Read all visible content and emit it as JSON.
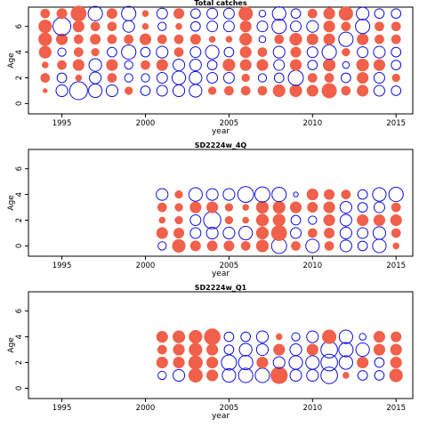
{
  "chart_data": [
    {
      "type": "scatter",
      "title": "Total catches",
      "xlabel": "year",
      "ylabel": "Age",
      "xlim": [
        1993,
        2016
      ],
      "ylim": [
        -0.8,
        7.5
      ],
      "xticks": [
        1995,
        2000,
        2005,
        2010,
        2015
      ],
      "yticks": [
        0,
        2,
        4,
        6
      ],
      "years": [
        1994,
        1995,
        1996,
        1997,
        1998,
        1999,
        2000,
        2001,
        2002,
        2003,
        2004,
        2005,
        2006,
        2007,
        2008,
        2009,
        2010,
        2011,
        2012,
        2013,
        2014,
        2015
      ],
      "ages": [
        1,
        2,
        3,
        4,
        5,
        6,
        7
      ],
      "residuals": [
        [
          0.05,
          0.2,
          0.1,
          0.35,
          0.4,
          0.4,
          0.2
        ],
        [
          -0.3,
          -0.2,
          0.2,
          -0.15,
          0.3,
          -0.7,
          0.25
        ],
        [
          -0.7,
          0.1,
          0.3,
          0.2,
          0.2,
          0.3,
          0.55
        ],
        [
          -0.4,
          -0.3,
          -0.35,
          0.15,
          0.25,
          0.2,
          -0.45
        ],
        [
          -0.3,
          0.2,
          0.3,
          -0.2,
          0.2,
          0.2,
          0.25
        ],
        [
          0.15,
          -0.15,
          -0.15,
          -0.45,
          0.2,
          -0.3,
          -0.45
        ],
        [
          -0.2,
          -0.15,
          0.2,
          -0.2,
          0.3,
          0.1,
          0.1
        ],
        [
          -0.25,
          -0.25,
          0.3,
          -0.3,
          0.2,
          -0.15,
          -0.25
        ],
        [
          -0.3,
          -0.4,
          -0.3,
          0.2,
          0.2,
          0.1,
          0.25
        ],
        [
          -0.35,
          -0.35,
          -0.3,
          -0.25,
          0.25,
          -0.2,
          -0.2
        ],
        [
          0.15,
          -0.25,
          -0.2,
          -0.4,
          0.1,
          -0.25,
          -0.25
        ],
        [
          0.2,
          -0.25,
          0.35,
          -0.2,
          0.1,
          -0.25,
          -0.25
        ],
        [
          0.2,
          0.15,
          0.3,
          0.3,
          0.35,
          0.3,
          0.45
        ],
        [
          0.2,
          -0.15,
          0.3,
          0.2,
          -0.1,
          -0.25,
          -0.1
        ],
        [
          0.35,
          -0.2,
          -0.25,
          -0.3,
          0.2,
          -0.45,
          -0.4
        ],
        [
          0.35,
          -0.5,
          0.3,
          0.25,
          0.35,
          -0.25,
          -0.2
        ],
        [
          0.3,
          0.2,
          -0.2,
          -0.25,
          0.3,
          -0.3,
          0.2
        ],
        [
          0.5,
          0.2,
          0.35,
          -0.45,
          0.3,
          0.3,
          0.3
        ],
        [
          0.2,
          -0.2,
          -0.1,
          0.15,
          -0.45,
          0.2,
          0.45
        ],
        [
          0.3,
          0.3,
          0.35,
          -0.25,
          0.3,
          -0.45,
          -0.35
        ],
        [
          -0.25,
          -0.25,
          0.3,
          -0.3,
          0.2,
          0.2,
          -0.2
        ],
        [
          -0.2,
          0.15,
          -0.2,
          -0.2,
          0.2,
          0.2,
          -0.2
        ]
      ]
    },
    {
      "type": "scatter",
      "title": "SD2224w_4Q",
      "xlabel": "year",
      "ylabel": "Age",
      "xlim": [
        1993,
        2016
      ],
      "ylim": [
        -0.8,
        7.5
      ],
      "xticks": [
        1995,
        2000,
        2005,
        2010,
        2015
      ],
      "yticks": [
        0,
        2,
        4,
        6
      ],
      "years": [
        2001,
        2002,
        2003,
        2004,
        2005,
        2006,
        2007,
        2008,
        2009,
        2010,
        2011,
        2012,
        2013,
        2014,
        2015
      ],
      "ages": [
        0,
        1,
        2,
        3,
        4
      ],
      "residuals": [
        [
          -0.15,
          0.3,
          0.1,
          0.2,
          -0.3
        ],
        [
          0.4,
          0.25,
          0.15,
          0.15,
          0.15
        ],
        [
          0.25,
          -0.25,
          -0.25,
          0.3,
          -0.4
        ],
        [
          0.25,
          -0.3,
          -0.65,
          0.3,
          -0.3
        ],
        [
          0.25,
          -0.3,
          0.15,
          0.15,
          -0.3
        ],
        [
          0.2,
          -0.4,
          0.1,
          0.1,
          -0.55
        ],
        [
          0.35,
          0.35,
          0.35,
          0.35,
          -0.5
        ],
        [
          -0.5,
          0.55,
          0.35,
          0.35,
          -0.45
        ],
        [
          0.2,
          -0.25,
          -0.2,
          0.3,
          -0.05
        ],
        [
          -0.4,
          0.2,
          -0.15,
          0.25,
          0.3
        ],
        [
          0.2,
          0.25,
          0.3,
          0.3,
          0.25
        ],
        [
          -0.3,
          -0.3,
          -0.3,
          -0.3,
          0.2
        ],
        [
          -0.2,
          -0.25,
          0.3,
          -0.2,
          -0.2
        ],
        [
          -0.4,
          -0.35,
          0.3,
          -0.25,
          -0.4
        ],
        [
          0.1,
          0.2,
          0.3,
          0.2,
          -0.45
        ]
      ]
    },
    {
      "type": "scatter",
      "title": "SD2224w_Q1",
      "xlabel": "year",
      "ylabel": "Age",
      "xlim": [
        1993,
        2016
      ],
      "ylim": [
        -0.8,
        7.5
      ],
      "xticks": [
        1995,
        2000,
        2005,
        2010,
        2015
      ],
      "yticks": [
        0,
        2,
        4,
        6
      ],
      "years": [
        2001,
        2002,
        2003,
        2004,
        2005,
        2006,
        2007,
        2008,
        2009,
        2010,
        2011,
        2012,
        2013,
        2014,
        2015
      ],
      "ages": [
        1,
        2,
        3,
        4
      ],
      "residuals": [
        [
          -0.15,
          0.3,
          0.2,
          0.3
        ],
        [
          -0.3,
          0.3,
          0.3,
          0.35
        ],
        [
          0.45,
          0.45,
          0.4,
          0.4
        ],
        [
          0.3,
          0.3,
          0.3,
          0.6
        ],
        [
          -0.4,
          -0.5,
          -0.2,
          -0.2
        ],
        [
          -0.45,
          -0.45,
          -0.35,
          -0.2
        ],
        [
          -0.45,
          0.3,
          -0.3,
          -0.3
        ],
        [
          0.65,
          -0.3,
          0.3,
          0.1
        ],
        [
          -0.3,
          -0.4,
          -0.3,
          -0.15
        ],
        [
          -0.3,
          -0.4,
          0.3,
          -0.3
        ],
        [
          -0.6,
          -0.6,
          -0.6,
          0.45
        ],
        [
          0.1,
          -0.4,
          -0.45,
          -0.4
        ],
        [
          -0.2,
          0.3,
          -0.4,
          -0.1
        ],
        [
          -0.2,
          -0.2,
          0.3,
          0.3
        ],
        [
          0.4,
          0.3,
          0.3,
          0.25
        ]
      ]
    }
  ],
  "colors": {
    "positive": "#f0604a",
    "negative": "#1010dd",
    "axis": "#000000"
  }
}
